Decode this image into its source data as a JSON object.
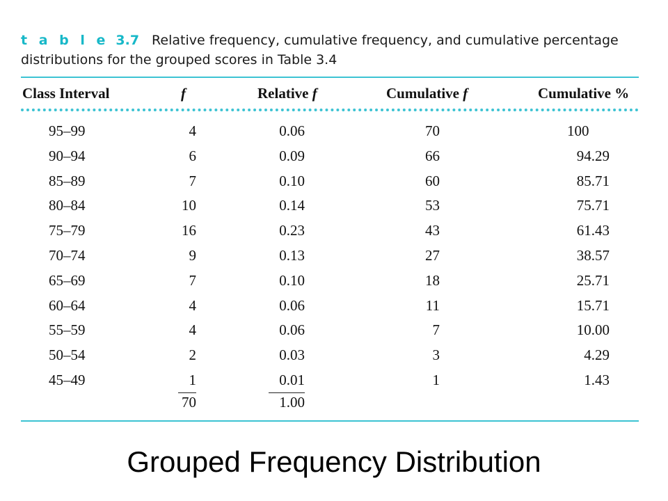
{
  "caption": {
    "label": "t a b l e",
    "number": "3.7",
    "line1": "Relative frequency, cumulative frequency, and cumulative percentage",
    "line2": "distributions for the grouped scores in Table 3.4"
  },
  "table": {
    "headers": {
      "class_interval": "Class Interval",
      "f": "f",
      "relative_prefix": "Relative ",
      "relative_f": "f",
      "cumulative_prefix": "Cumulative ",
      "cumulative_f": "f",
      "cumulative_pct": "Cumulative %"
    },
    "rows": [
      [
        "95–99",
        "4",
        "0.06",
        "70",
        "100"
      ],
      [
        "90–94",
        "6",
        "0.09",
        "66",
        "94.29"
      ],
      [
        "85–89",
        "7",
        "0.10",
        "60",
        "85.71"
      ],
      [
        "80–84",
        "10",
        "0.14",
        "53",
        "75.71"
      ],
      [
        "75–79",
        "16",
        "0.23",
        "43",
        "61.43"
      ],
      [
        "70–74",
        "9",
        "0.13",
        "27",
        "38.57"
      ],
      [
        "65–69",
        "7",
        "0.10",
        "18",
        "25.71"
      ],
      [
        "60–64",
        "4",
        "0.06",
        "11",
        "15.71"
      ],
      [
        "55–59",
        "4",
        "0.06",
        "7",
        "10.00"
      ],
      [
        "50–54",
        "2",
        "0.03",
        "3",
        "4.29"
      ],
      [
        "45–49",
        "1",
        "0.01",
        "1",
        "1.43"
      ]
    ],
    "totals": {
      "f": "70",
      "relative": "1.00"
    }
  },
  "footer": {
    "title": "Grouped Frequency Distribution"
  },
  "colors": {
    "accent": "#17b8c8",
    "rule": "#3cc3d3"
  }
}
